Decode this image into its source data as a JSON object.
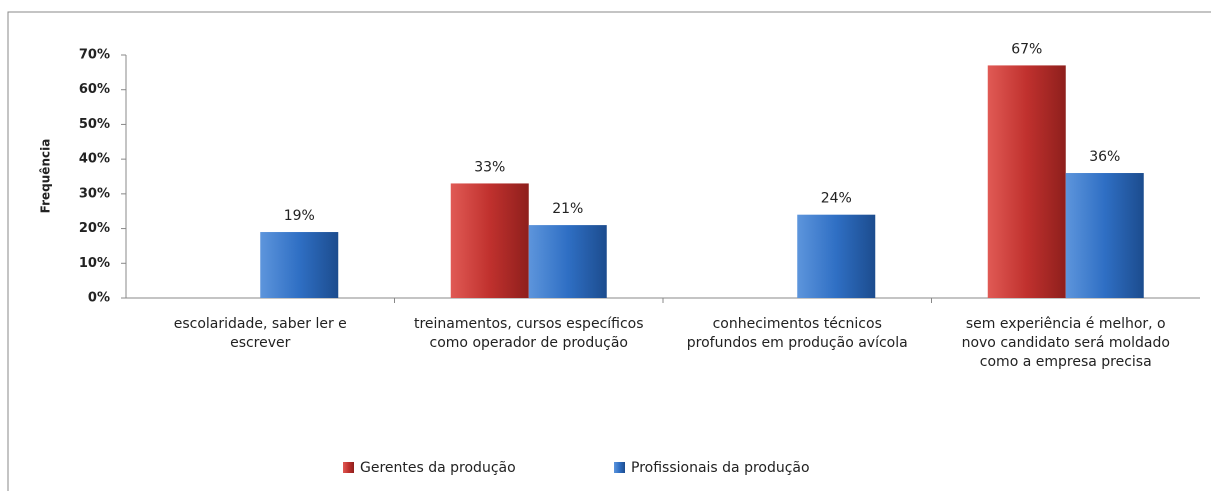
{
  "chart_data": {
    "type": "bar",
    "y_label": "Frequência",
    "categories": [
      "escolaridade, saber ler e escrever",
      "treinamentos, cursos específicos como operador de produção",
      "conhecimentos técnicos profundos em produção avícola",
      "sem experiência é melhor, o novo candidato será moldado como a empresa precisa"
    ],
    "series": [
      {
        "name": "Gerentes da produção",
        "color": "#c0312e",
        "values": [
          null,
          33,
          null,
          67
        ],
        "value_labels": [
          null,
          "33%",
          null,
          "67%"
        ]
      },
      {
        "name": "Profissionais da produção",
        "color": "#2f6fc4",
        "values": [
          19,
          21,
          24,
          36
        ],
        "value_labels": [
          "19%",
          "21%",
          "24%",
          "36%"
        ]
      }
    ],
    "ylim": [
      0,
      70
    ],
    "yticks": [
      {
        "value": 0,
        "label": "0%"
      },
      {
        "value": 10,
        "label": "10%"
      },
      {
        "value": 20,
        "label": "20%"
      },
      {
        "value": 30,
        "label": "30%"
      },
      {
        "value": 40,
        "label": "40%"
      },
      {
        "value": 50,
        "label": "50%"
      },
      {
        "value": 60,
        "label": "60%"
      },
      {
        "value": 70,
        "label": "70%"
      }
    ],
    "grid": false,
    "legend": "bottom"
  }
}
